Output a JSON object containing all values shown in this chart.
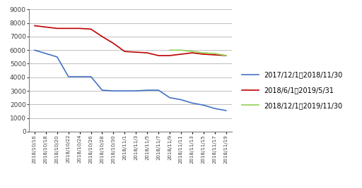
{
  "x_labels": [
    "2018/10/16",
    "2018/10/18",
    "2018/10/20",
    "2018/10/22",
    "2018/10/24",
    "2018/10/26",
    "2018/10/28",
    "2018/10/30",
    "2018/11/1",
    "2018/11/3",
    "2018/11/5",
    "2018/11/7",
    "2018/11/9",
    "2018/11/11",
    "2018/11/13",
    "2018/11/15",
    "2018/11/17",
    "2018/11/19"
  ],
  "series1": {
    "label": "2017/12/1～2018/11/30",
    "color": "#4472C4",
    "data": [
      6000,
      5750,
      5500,
      4050,
      4050,
      4050,
      3050,
      3000,
      3000,
      3000,
      3050,
      3050,
      2500,
      2350,
      2100,
      1950,
      1700,
      1550
    ]
  },
  "series2": {
    "label": "2018/6/1～2019/5/31",
    "color": "#C00000",
    "data": [
      7800,
      7700,
      7600,
      7600,
      7600,
      7550,
      7000,
      6500,
      5900,
      5850,
      5800,
      5600,
      5600,
      5700,
      5800,
      5700,
      5650,
      5600
    ]
  },
  "series3": {
    "label": "2018/12/1～2019/11/30",
    "color": "#92D050",
    "data": [
      null,
      null,
      null,
      null,
      null,
      null,
      null,
      null,
      null,
      null,
      null,
      null,
      6000,
      6000,
      5900,
      5800,
      5750,
      5600
    ]
  },
  "ylim": [
    0,
    9000
  ],
  "yticks": [
    0,
    1000,
    2000,
    3000,
    4000,
    5000,
    6000,
    7000,
    8000,
    9000
  ],
  "bg_color": "#FFFFFF",
  "plot_area_color": "#FFFFFF",
  "grid_color": "#BFBFBF"
}
